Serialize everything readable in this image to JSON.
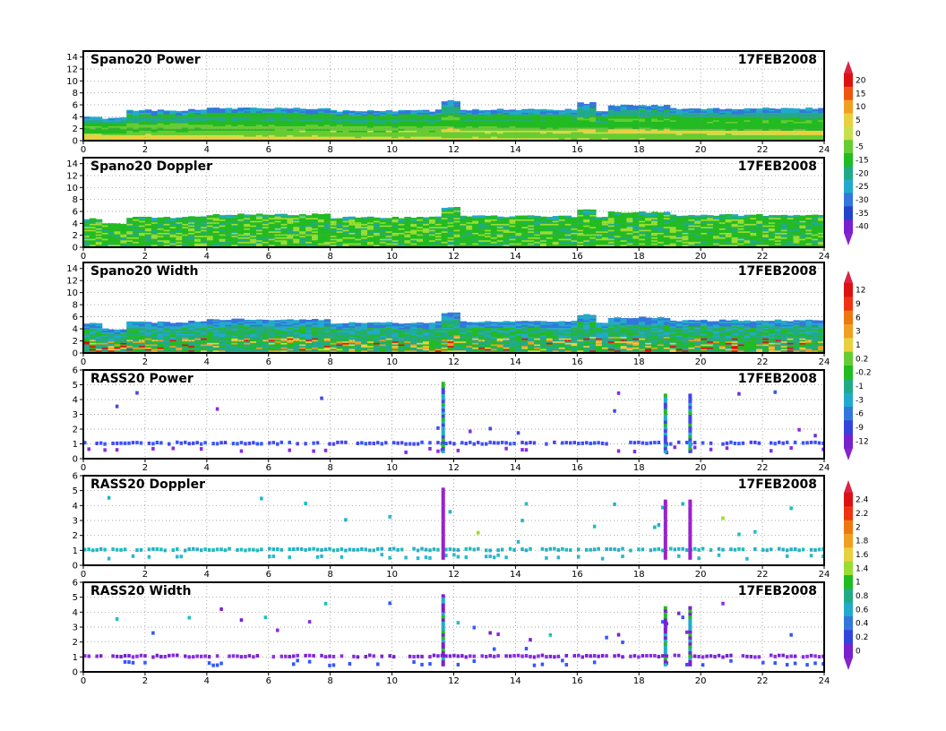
{
  "chart_data": [
    {
      "type": "heatmap",
      "title": "Spano20  Power",
      "date": "17FEB2008",
      "xlim": [
        0,
        24
      ],
      "ylim": [
        0,
        15
      ],
      "x_ticks": [
        "0",
        "2",
        "4",
        "6",
        "8",
        "10",
        "12",
        "14",
        "16",
        "18",
        "20",
        "22",
        "24"
      ],
      "y_ticks": [
        "0",
        "2",
        "4",
        "6",
        "8",
        "10",
        "12",
        "14"
      ],
      "grid": true,
      "colorbar_ref": "power",
      "texture": "layers",
      "top_heights": [
        [
          0,
          4.0
        ],
        [
          0.6,
          3.8
        ],
        [
          1.5,
          5.1
        ],
        [
          3.5,
          5.2
        ],
        [
          4,
          5.4
        ],
        [
          8,
          5.0
        ],
        [
          11.4,
          5.2
        ],
        [
          11.6,
          6.7
        ],
        [
          12.2,
          5.2
        ],
        [
          15.2,
          5.2
        ],
        [
          16,
          6.3
        ],
        [
          16.5,
          5.0
        ],
        [
          17,
          5.9
        ],
        [
          19,
          5.4
        ],
        [
          24,
          5.6
        ]
      ],
      "color_stops": [
        -5,
        -15,
        -20,
        -25,
        -30
      ],
      "description_levels": "values near 0-5 dB within 0-2 km, decreasing to -25/-35 dB near the top of coverage"
    },
    {
      "type": "heatmap",
      "title": "Spano20  Doppler",
      "date": "17FEB2008",
      "xlim": [
        0,
        24
      ],
      "ylim": [
        0,
        15
      ],
      "x_ticks": [
        "0",
        "2",
        "4",
        "6",
        "8",
        "10",
        "12",
        "14",
        "16",
        "18",
        "20",
        "22",
        "24"
      ],
      "y_ticks": [
        "0",
        "2",
        "4",
        "6",
        "8",
        "10",
        "12",
        "14"
      ],
      "grid": true,
      "colorbar_ref": "power",
      "texture": "doppler",
      "top_heights": [
        [
          0,
          4.8
        ],
        [
          0.6,
          4.0
        ],
        [
          1.5,
          5.0
        ],
        [
          3.5,
          5.1
        ],
        [
          4,
          5.5
        ],
        [
          8,
          5.0
        ],
        [
          11.4,
          5.2
        ],
        [
          11.6,
          6.7
        ],
        [
          12.2,
          5.2
        ],
        [
          15.2,
          5.2
        ],
        [
          16,
          6.3
        ],
        [
          16.5,
          5.0
        ],
        [
          17,
          5.9
        ],
        [
          19,
          5.4
        ],
        [
          24,
          5.6
        ]
      ]
    },
    {
      "type": "heatmap",
      "title": "Spano20  Width",
      "date": "17FEB2008",
      "xlim": [
        0,
        24
      ],
      "ylim": [
        0,
        15
      ],
      "x_ticks": [
        "0",
        "2",
        "4",
        "6",
        "8",
        "10",
        "12",
        "14",
        "16",
        "18",
        "20",
        "22",
        "24"
      ],
      "y_ticks": [
        "0",
        "2",
        "4",
        "6",
        "8",
        "10",
        "12",
        "14"
      ],
      "grid": true,
      "colorbar_ref": "width",
      "texture": "width",
      "top_heights": [
        [
          0,
          5.0
        ],
        [
          0.6,
          4.0
        ],
        [
          1.5,
          5.1
        ],
        [
          3.5,
          5.3
        ],
        [
          4,
          5.6
        ],
        [
          8,
          5.0
        ],
        [
          11.4,
          5.2
        ],
        [
          11.6,
          6.7
        ],
        [
          12.2,
          5.2
        ],
        [
          15.2,
          5.2
        ],
        [
          16,
          6.3
        ],
        [
          16.5,
          5.0
        ],
        [
          17,
          5.9
        ],
        [
          19,
          5.4
        ],
        [
          24,
          5.6
        ]
      ]
    },
    {
      "type": "scatter",
      "title": "RASS20  Power",
      "date": "17FEB2008",
      "xlim": [
        0,
        24
      ],
      "ylim": [
        0,
        6
      ],
      "x_ticks": [
        "0",
        "2",
        "4",
        "6",
        "8",
        "10",
        "12",
        "14",
        "16",
        "18",
        "20",
        "22",
        "24"
      ],
      "y_ticks": [
        "0",
        "1",
        "2",
        "3",
        "4",
        "5",
        "6"
      ],
      "grid": true,
      "colorbar_ref": "width",
      "band_height_km": 1.05,
      "columns_x": [
        11.6,
        18.8,
        19.6
      ],
      "column_tops_km": [
        5.1,
        4.3,
        4.3
      ],
      "palette": [
        "#4444ee",
        "#3355ff",
        "#8a2be2",
        "#6633cc"
      ]
    },
    {
      "type": "scatter",
      "title": "RASS20  Doppler",
      "date": "17FEB2008",
      "xlim": [
        0,
        24
      ],
      "ylim": [
        0,
        6
      ],
      "x_ticks": [
        "0",
        "2",
        "4",
        "6",
        "8",
        "10",
        "12",
        "14",
        "16",
        "18",
        "20",
        "22",
        "24"
      ],
      "y_ticks": [
        "0",
        "1",
        "2",
        "3",
        "4",
        "5",
        "6"
      ],
      "grid": true,
      "colorbar_ref": "rass_doppler",
      "band_height_km": 1.05,
      "columns_x": [
        11.6,
        18.8,
        19.6
      ],
      "column_tops_km": [
        5.1,
        4.3,
        4.3
      ],
      "palette": [
        "#20b2c8",
        "#17c0c0",
        "#28b8d0",
        "#99dd33"
      ]
    },
    {
      "type": "scatter",
      "title": "RASS20  Width",
      "date": "17FEB2008",
      "xlim": [
        0,
        24
      ],
      "ylim": [
        0,
        6
      ],
      "x_ticks": [
        "0",
        "2",
        "4",
        "6",
        "8",
        "10",
        "12",
        "14",
        "16",
        "18",
        "20",
        "22",
        "24"
      ],
      "y_ticks": [
        "0",
        "1",
        "2",
        "3",
        "4",
        "5",
        "6"
      ],
      "grid": true,
      "colorbar_ref": "rass_doppler",
      "band_height_km": 1.05,
      "columns_x": [
        11.6,
        18.8,
        19.6
      ],
      "column_tops_km": [
        5.1,
        4.3,
        4.3
      ],
      "palette": [
        "#7a20d0",
        "#8a2be2",
        "#3355ff",
        "#22c0c0"
      ]
    }
  ],
  "colorbars": {
    "power": {
      "labels": [
        "20",
        "15",
        "10",
        "5",
        "0",
        "-5",
        "-15",
        "-20",
        "-25",
        "-30",
        "-35",
        "-40"
      ],
      "colors": [
        "#dd1111",
        "#ee5511",
        "#f0a020",
        "#e8d040",
        "#c8e050",
        "#66cc33",
        "#22bb22",
        "#22aa88",
        "#22aacc",
        "#3377dd",
        "#2244cc",
        "#7722cc"
      ],
      "tip_top": "#dd2244",
      "tip_bottom": "#8822cc"
    },
    "width": {
      "labels": [
        "12",
        "9",
        "6",
        "3",
        "1",
        "0.2",
        "-0.2",
        "-1",
        "-3",
        "-6",
        "-9",
        "-12"
      ],
      "colors": [
        "#dd1111",
        "#ee3311",
        "#ee7711",
        "#f0a020",
        "#e8d040",
        "#66cc33",
        "#22bb22",
        "#22aa88",
        "#22aacc",
        "#3377dd",
        "#3344dd",
        "#7722cc"
      ],
      "tip_top": "#dd2244",
      "tip_bottom": "#8822cc"
    },
    "rass_doppler": {
      "labels": [
        "2.4",
        "2.2",
        "2",
        "1.8",
        "1.6",
        "1.4",
        "1",
        "0.8",
        "0.6",
        "0.4",
        "0.2",
        "0"
      ],
      "colors": [
        "#dd1111",
        "#ee3311",
        "#ee7711",
        "#f0a020",
        "#e8d040",
        "#99dd33",
        "#22bb22",
        "#22aa88",
        "#22aacc",
        "#3377dd",
        "#3344dd",
        "#7722cc"
      ],
      "tip_top": "#dd2244",
      "tip_bottom": "#8822cc"
    }
  }
}
